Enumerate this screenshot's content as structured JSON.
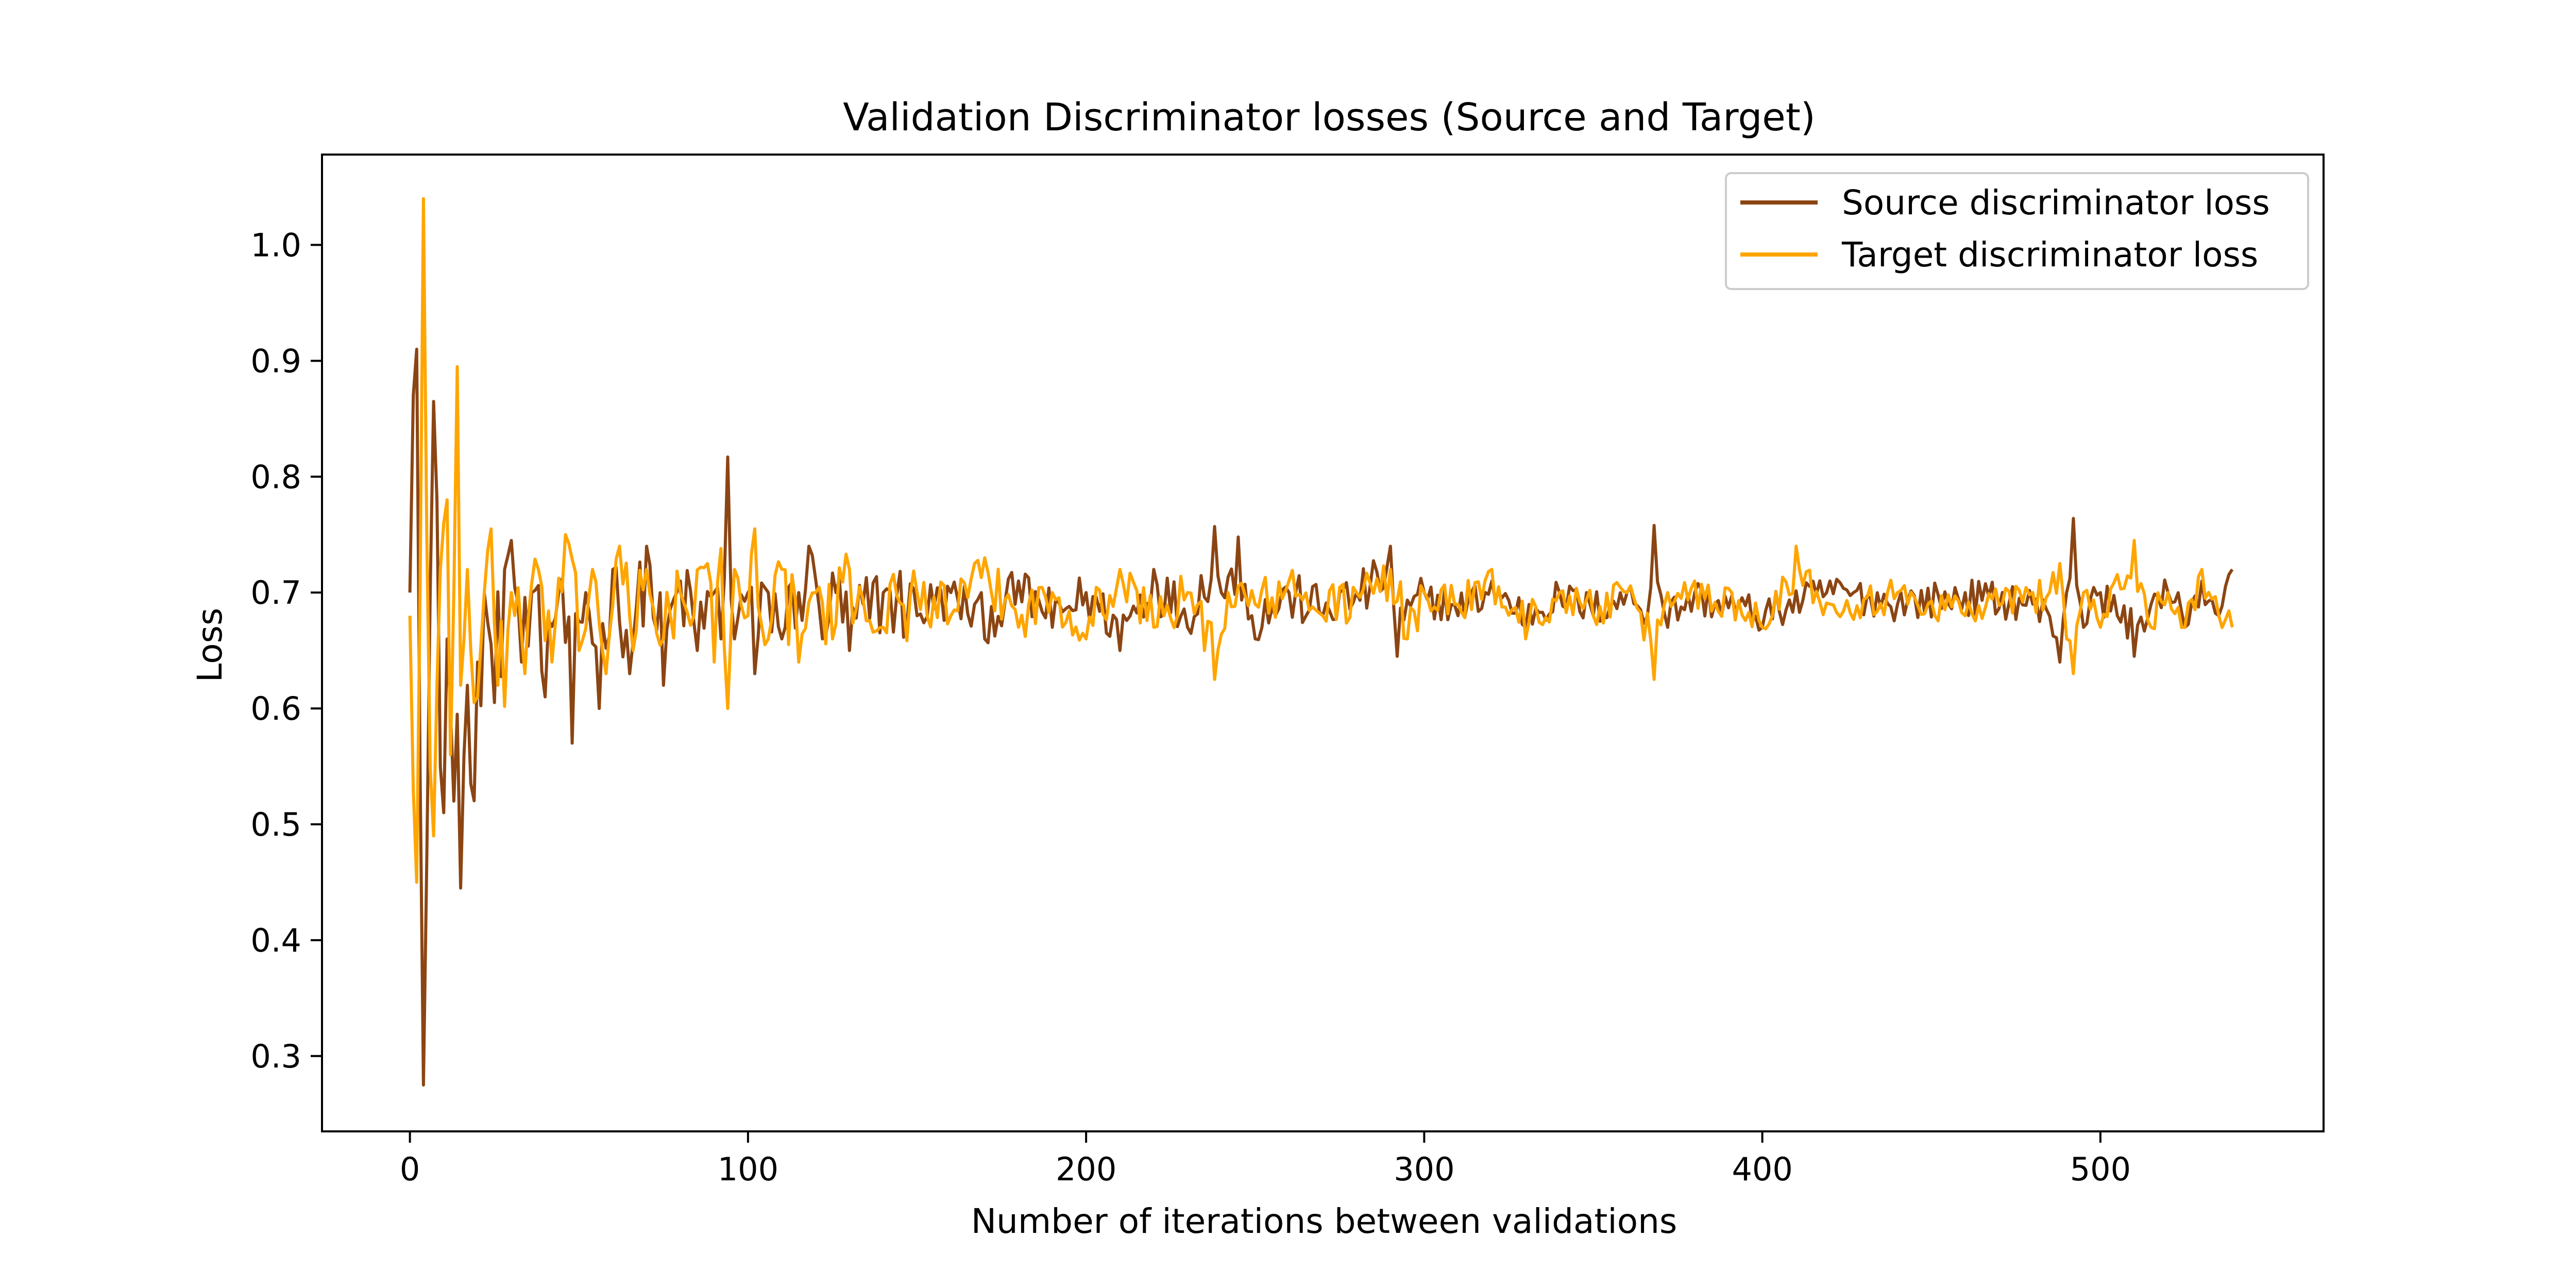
{
  "chart_data": {
    "type": "line",
    "title": "Validation Discriminator losses (Source and Target)",
    "xlabel": "Number of iterations between validations",
    "ylabel": "Loss",
    "xlim": [
      -26,
      566
    ],
    "ylim": [
      0.235,
      1.078
    ],
    "xticks": [
      0,
      100,
      200,
      300,
      400,
      500
    ],
    "yticks": [
      0.3,
      0.4,
      0.5,
      0.6,
      0.7,
      0.8,
      0.9,
      1.0
    ],
    "xtick_labels": [
      "0",
      "100",
      "200",
      "300",
      "400",
      "500"
    ],
    "ytick_labels": [
      "0.3",
      "0.4",
      "0.5",
      "0.6",
      "0.7",
      "0.8",
      "0.9",
      "1.0"
    ],
    "grid": false,
    "legend_position": "top-right",
    "x_range": [
      0,
      539
    ],
    "series": [
      {
        "name": "Source discriminator loss",
        "color": "#8B4513",
        "anchor_points": [
          [
            0,
            0.7
          ],
          [
            1,
            0.87
          ],
          [
            2,
            0.91
          ],
          [
            3,
            0.55
          ],
          [
            4,
            0.275
          ],
          [
            5,
            0.47
          ],
          [
            6,
            0.7
          ],
          [
            7,
            0.865
          ],
          [
            8,
            0.78
          ],
          [
            9,
            0.55
          ],
          [
            10,
            0.51
          ],
          [
            11,
            0.66
          ],
          [
            12,
            0.6
          ],
          [
            13,
            0.52
          ],
          [
            14,
            0.595
          ],
          [
            15,
            0.445
          ],
          [
            16,
            0.56
          ],
          [
            17,
            0.62
          ],
          [
            18,
            0.535
          ],
          [
            20,
            0.64
          ],
          [
            22,
            0.7
          ],
          [
            25,
            0.605
          ],
          [
            28,
            0.72
          ],
          [
            30,
            0.745
          ],
          [
            33,
            0.64
          ],
          [
            36,
            0.7
          ],
          [
            40,
            0.61
          ],
          [
            44,
            0.7
          ],
          [
            48,
            0.57
          ],
          [
            52,
            0.7
          ],
          [
            56,
            0.6
          ],
          [
            60,
            0.72
          ],
          [
            65,
            0.63
          ],
          [
            70,
            0.74
          ],
          [
            75,
            0.62
          ],
          [
            80,
            0.71
          ],
          [
            85,
            0.65
          ],
          [
            90,
            0.7
          ],
          [
            92,
            0.66
          ],
          [
            94,
            0.817
          ],
          [
            96,
            0.66
          ],
          [
            100,
            0.7
          ],
          [
            102,
            0.63
          ],
          [
            106,
            0.7
          ],
          [
            110,
            0.66
          ],
          [
            115,
            0.7
          ],
          [
            118,
            0.74
          ],
          [
            122,
            0.66
          ],
          [
            126,
            0.7
          ],
          [
            130,
            0.65
          ],
          [
            140,
            0.7
          ],
          [
            150,
            0.68
          ],
          [
            160,
            0.7
          ],
          [
            170,
            0.66
          ],
          [
            180,
            0.71
          ],
          [
            190,
            0.67
          ],
          [
            200,
            0.7
          ],
          [
            210,
            0.65
          ],
          [
            220,
            0.72
          ],
          [
            230,
            0.67
          ],
          [
            238,
            0.757
          ],
          [
            240,
            0.7
          ],
          [
            245,
            0.748
          ],
          [
            250,
            0.66
          ],
          [
            260,
            0.7
          ],
          [
            270,
            0.68
          ],
          [
            280,
            0.7
          ],
          [
            290,
            0.74
          ],
          [
            292,
            0.645
          ],
          [
            300,
            0.7
          ],
          [
            310,
            0.68
          ],
          [
            320,
            0.71
          ],
          [
            330,
            0.67
          ],
          [
            340,
            0.7
          ],
          [
            350,
            0.68
          ],
          [
            360,
            0.7
          ],
          [
            366,
            0.68
          ],
          [
            368,
            0.758
          ],
          [
            372,
            0.67
          ],
          [
            380,
            0.7
          ],
          [
            400,
            0.67
          ],
          [
            420,
            0.71
          ],
          [
            440,
            0.69
          ],
          [
            460,
            0.7
          ],
          [
            480,
            0.69
          ],
          [
            488,
            0.64
          ],
          [
            490,
            0.7
          ],
          [
            492,
            0.764
          ],
          [
            495,
            0.67
          ],
          [
            500,
            0.7
          ],
          [
            505,
            0.68
          ],
          [
            510,
            0.645
          ],
          [
            515,
            0.69
          ],
          [
            520,
            0.7
          ],
          [
            525,
            0.67
          ],
          [
            530,
            0.71
          ],
          [
            535,
            0.68
          ],
          [
            539,
            0.72
          ]
        ]
      },
      {
        "name": "Target discriminator loss",
        "color": "#FFA500",
        "anchor_points": [
          [
            0,
            0.68
          ],
          [
            1,
            0.53
          ],
          [
            2,
            0.45
          ],
          [
            3,
            0.7
          ],
          [
            4,
            1.04
          ],
          [
            5,
            0.75
          ],
          [
            6,
            0.55
          ],
          [
            7,
            0.49
          ],
          [
            8,
            0.62
          ],
          [
            9,
            0.72
          ],
          [
            10,
            0.76
          ],
          [
            11,
            0.78
          ],
          [
            12,
            0.56
          ],
          [
            13,
            0.7
          ],
          [
            14,
            0.895
          ],
          [
            15,
            0.62
          ],
          [
            16,
            0.66
          ],
          [
            17,
            0.72
          ],
          [
            18,
            0.65
          ],
          [
            20,
            0.61
          ],
          [
            22,
            0.7
          ],
          [
            24,
            0.755
          ],
          [
            26,
            0.62
          ],
          [
            30,
            0.7
          ],
          [
            34,
            0.63
          ],
          [
            38,
            0.72
          ],
          [
            42,
            0.64
          ],
          [
            46,
            0.75
          ],
          [
            50,
            0.65
          ],
          [
            54,
            0.72
          ],
          [
            58,
            0.63
          ],
          [
            62,
            0.74
          ],
          [
            66,
            0.65
          ],
          [
            70,
            0.72
          ],
          [
            75,
            0.66
          ],
          [
            80,
            0.7
          ],
          [
            84,
            0.68
          ],
          [
            88,
            0.725
          ],
          [
            90,
            0.64
          ],
          [
            92,
            0.738
          ],
          [
            94,
            0.6
          ],
          [
            96,
            0.72
          ],
          [
            100,
            0.68
          ],
          [
            102,
            0.755
          ],
          [
            106,
            0.66
          ],
          [
            110,
            0.72
          ],
          [
            115,
            0.64
          ],
          [
            120,
            0.7
          ],
          [
            125,
            0.66
          ],
          [
            130,
            0.72
          ],
          [
            140,
            0.67
          ],
          [
            150,
            0.7
          ],
          [
            160,
            0.68
          ],
          [
            170,
            0.73
          ],
          [
            180,
            0.67
          ],
          [
            190,
            0.7
          ],
          [
            200,
            0.66
          ],
          [
            210,
            0.72
          ],
          [
            220,
            0.67
          ],
          [
            230,
            0.7
          ],
          [
            235,
            0.65
          ],
          [
            238,
            0.625
          ],
          [
            242,
            0.7
          ],
          [
            250,
            0.69
          ],
          [
            260,
            0.71
          ],
          [
            270,
            0.68
          ],
          [
            280,
            0.7
          ],
          [
            290,
            0.72
          ],
          [
            295,
            0.66
          ],
          [
            300,
            0.7
          ],
          [
            310,
            0.69
          ],
          [
            320,
            0.72
          ],
          [
            330,
            0.66
          ],
          [
            340,
            0.7
          ],
          [
            350,
            0.68
          ],
          [
            360,
            0.7
          ],
          [
            368,
            0.625
          ],
          [
            372,
            0.7
          ],
          [
            380,
            0.71
          ],
          [
            400,
            0.67
          ],
          [
            410,
            0.74
          ],
          [
            420,
            0.69
          ],
          [
            440,
            0.7
          ],
          [
            460,
            0.68
          ],
          [
            480,
            0.7
          ],
          [
            488,
            0.725
          ],
          [
            490,
            0.66
          ],
          [
            492,
            0.63
          ],
          [
            495,
            0.7
          ],
          [
            500,
            0.67
          ],
          [
            510,
            0.745
          ],
          [
            515,
            0.67
          ],
          [
            520,
            0.7
          ],
          [
            525,
            0.67
          ],
          [
            530,
            0.72
          ],
          [
            535,
            0.68
          ],
          [
            539,
            0.67
          ]
        ]
      }
    ]
  }
}
